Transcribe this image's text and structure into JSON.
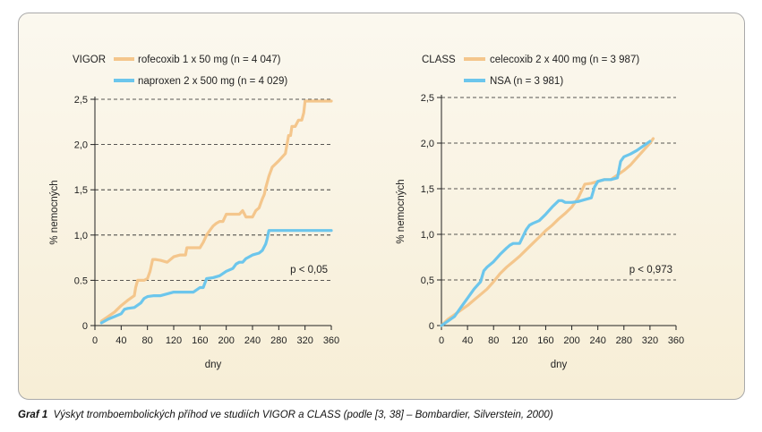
{
  "caption": {
    "label": "Graf 1",
    "text": "Výskyt tromboembolických příhod ve studiích VIGOR a CLASS (podle [3, 38] – Bombardier, Silverstein, 2000)"
  },
  "colors": {
    "orange": "#f4c68c",
    "blue": "#6cc6ec",
    "axis": "#222222"
  },
  "chart_data": [
    {
      "type": "line",
      "title": "VIGOR",
      "xlabel": "dny",
      "ylabel": "% nemocných",
      "xlim": [
        0,
        360
      ],
      "ylim": [
        0,
        2.5
      ],
      "xticks": [
        0,
        40,
        80,
        120,
        160,
        200,
        240,
        280,
        320,
        360
      ],
      "xtick_labels": [
        "0",
        "40",
        "80",
        "120",
        "160",
        "200",
        "240",
        "280",
        "320",
        "360"
      ],
      "yticks": [
        0,
        0.5,
        1.0,
        1.5,
        2.0,
        2.5
      ],
      "ytick_labels": [
        "0",
        "0.5",
        "1,0",
        "1,5",
        "2,0",
        "2,5"
      ],
      "grid": "horizontal dashed",
      "legend": "top-left",
      "annotation": "p < 0,05",
      "series": [
        {
          "name": "rofecoxib 1 x 50 mg (n = 4 047)",
          "color": "#f4c68c",
          "x": [
            10,
            20,
            30,
            40,
            50,
            60,
            62,
            65,
            70,
            75,
            80,
            84,
            88,
            92,
            100,
            110,
            120,
            130,
            138,
            140,
            150,
            160,
            165,
            170,
            175,
            180,
            185,
            190,
            195,
            200,
            205,
            210,
            220,
            225,
            230,
            240,
            245,
            250,
            255,
            258,
            260,
            265,
            270,
            280,
            290,
            295,
            298,
            300,
            305,
            310,
            315,
            318,
            320,
            330,
            340,
            350,
            360
          ],
          "y": [
            0.05,
            0.1,
            0.15,
            0.22,
            0.28,
            0.33,
            0.42,
            0.5,
            0.5,
            0.5,
            0.52,
            0.6,
            0.73,
            0.73,
            0.72,
            0.7,
            0.76,
            0.78,
            0.78,
            0.86,
            0.86,
            0.86,
            0.92,
            1.0,
            1.05,
            1.1,
            1.13,
            1.15,
            1.15,
            1.23,
            1.23,
            1.23,
            1.23,
            1.27,
            1.2,
            1.2,
            1.27,
            1.3,
            1.4,
            1.45,
            1.52,
            1.65,
            1.75,
            1.82,
            1.9,
            2.1,
            2.1,
            2.2,
            2.2,
            2.27,
            2.27,
            2.35,
            2.48,
            2.48,
            2.48,
            2.48,
            2.48
          ]
        },
        {
          "name": "naproxen 2 x 500 mg (n = 4 029)",
          "color": "#6cc6ec",
          "x": [
            10,
            20,
            30,
            40,
            45,
            50,
            60,
            70,
            75,
            80,
            90,
            100,
            120,
            140,
            150,
            160,
            165,
            170,
            180,
            190,
            200,
            210,
            215,
            220,
            225,
            230,
            240,
            250,
            255,
            260,
            262,
            265,
            280,
            300,
            320,
            340,
            360
          ],
          "y": [
            0.03,
            0.07,
            0.1,
            0.13,
            0.18,
            0.19,
            0.2,
            0.25,
            0.3,
            0.32,
            0.33,
            0.33,
            0.37,
            0.37,
            0.37,
            0.42,
            0.42,
            0.52,
            0.53,
            0.55,
            0.6,
            0.63,
            0.68,
            0.7,
            0.7,
            0.74,
            0.78,
            0.8,
            0.83,
            0.9,
            0.95,
            1.05,
            1.05,
            1.05,
            1.05,
            1.05,
            1.05
          ]
        }
      ]
    },
    {
      "type": "line",
      "title": "CLASS",
      "xlabel": "dny",
      "ylabel": "% nemocných",
      "xlim": [
        0,
        360
      ],
      "ylim": [
        0,
        2.5
      ],
      "xticks": [
        0,
        40,
        80,
        120,
        160,
        200,
        240,
        280,
        320,
        360
      ],
      "xtick_labels": [
        "0",
        "40",
        "80",
        "120",
        "160",
        "200",
        "240",
        "280",
        "320",
        "360"
      ],
      "yticks": [
        0,
        0.5,
        1.0,
        1.5,
        2.0,
        2.5
      ],
      "ytick_labels": [
        "0",
        "0,5",
        "1,0",
        "1,5",
        "2,0",
        "2,5"
      ],
      "grid": "horizontal dashed",
      "legend": "top-left",
      "annotation": "p < 0,973",
      "series": [
        {
          "name": "celecoxib 2 x 400 mg (n = 3 987)",
          "color": "#f4c68c",
          "x": [
            0,
            10,
            20,
            30,
            40,
            50,
            60,
            70,
            80,
            90,
            100,
            110,
            120,
            130,
            140,
            150,
            160,
            170,
            180,
            190,
            200,
            210,
            220,
            230,
            240,
            250,
            260,
            270,
            280,
            290,
            300,
            310,
            320,
            325
          ],
          "y": [
            0,
            0.07,
            0.12,
            0.17,
            0.22,
            0.28,
            0.34,
            0.4,
            0.48,
            0.57,
            0.64,
            0.7,
            0.76,
            0.83,
            0.9,
            0.97,
            1.04,
            1.1,
            1.17,
            1.23,
            1.3,
            1.4,
            1.55,
            1.56,
            1.58,
            1.6,
            1.6,
            1.65,
            1.7,
            1.76,
            1.84,
            1.92,
            2.0,
            2.05
          ]
        },
        {
          "name": "NSA (n = 3 981)",
          "color": "#6cc6ec",
          "x": [
            0,
            10,
            20,
            30,
            40,
            50,
            60,
            65,
            70,
            80,
            90,
            100,
            105,
            110,
            120,
            130,
            135,
            140,
            150,
            160,
            170,
            180,
            185,
            190,
            200,
            210,
            220,
            230,
            235,
            240,
            250,
            260,
            270,
            275,
            280,
            290,
            300,
            310,
            320
          ],
          "y": [
            0,
            0.05,
            0.1,
            0.2,
            0.3,
            0.4,
            0.48,
            0.6,
            0.64,
            0.7,
            0.78,
            0.85,
            0.88,
            0.9,
            0.9,
            1.05,
            1.1,
            1.12,
            1.15,
            1.22,
            1.3,
            1.37,
            1.37,
            1.35,
            1.35,
            1.36,
            1.38,
            1.4,
            1.52,
            1.58,
            1.6,
            1.6,
            1.62,
            1.8,
            1.85,
            1.88,
            1.92,
            1.97,
            2.02
          ]
        }
      ]
    }
  ]
}
